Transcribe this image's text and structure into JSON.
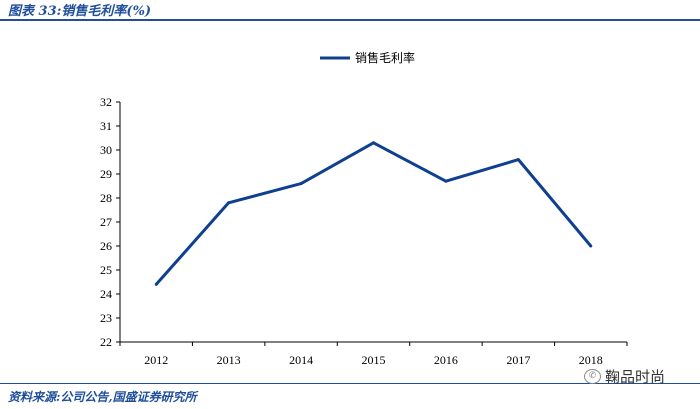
{
  "header": {
    "title": "图表 33:销售毛利率(%)"
  },
  "footer": {
    "source": "资料来源:公司公告,国盛证券研究所"
  },
  "watermark": {
    "icon": "wechat-icon",
    "text": "鞠品时尚"
  },
  "colors": {
    "accent": "#1f4e9b",
    "series": "#0f3f8f"
  },
  "chart_data": {
    "type": "line",
    "title": "",
    "xlabel": "",
    "ylabel": "",
    "x": [
      "2012",
      "2013",
      "2014",
      "2015",
      "2016",
      "2017",
      "2018"
    ],
    "series": [
      {
        "name": "销售毛利率",
        "values": [
          24.4,
          27.8,
          28.6,
          30.3,
          28.7,
          29.6,
          26.0
        ]
      }
    ],
    "ylim": [
      22,
      32
    ],
    "yticks": [
      22,
      23,
      24,
      25,
      26,
      27,
      28,
      29,
      30,
      31,
      32
    ],
    "grid": false,
    "legend": "top-center"
  }
}
